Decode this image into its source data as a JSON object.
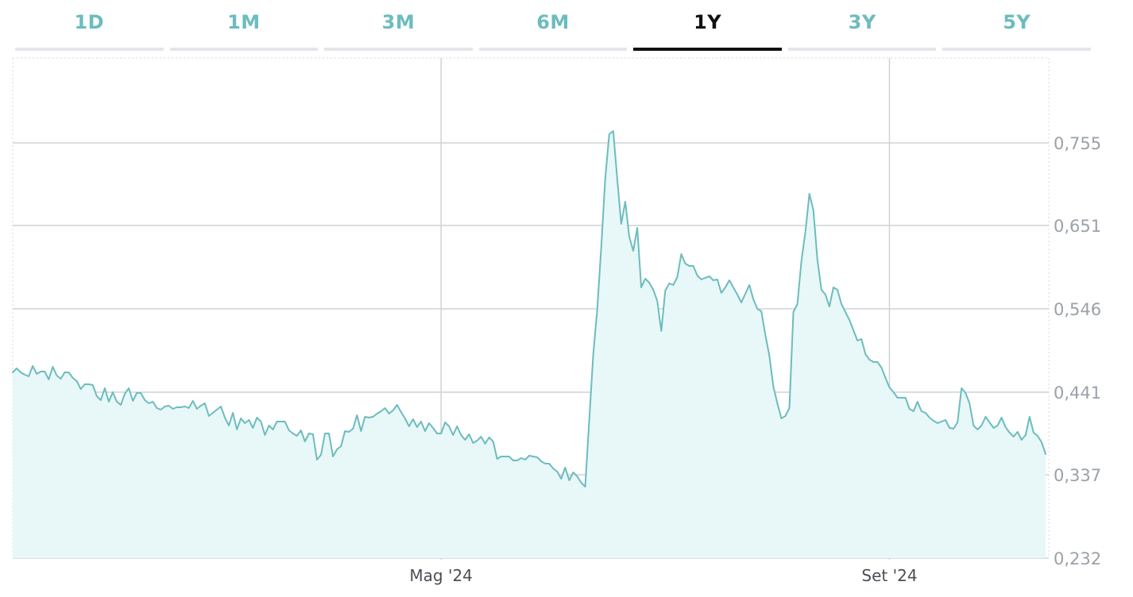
{
  "tabs": [
    {
      "label": "1D",
      "active": false
    },
    {
      "label": "1M",
      "active": false
    },
    {
      "label": "3M",
      "active": false
    },
    {
      "label": "6M",
      "active": false
    },
    {
      "label": "1Y",
      "active": true
    },
    {
      "label": "3Y",
      "active": false
    },
    {
      "label": "5Y",
      "active": false
    }
  ],
  "colors": {
    "line": "#6cbcbe",
    "fill": "#e8f7f8",
    "tab_inactive": "#6cbcbe",
    "tab_active": "#111111"
  },
  "chart_data": {
    "type": "area",
    "title": "",
    "xlabel": "",
    "ylabel": "",
    "ylim": [
      0.232,
      0.86
    ],
    "y_ticks": [
      0.232,
      0.337,
      0.441,
      0.546,
      0.651,
      0.755
    ],
    "y_tick_labels": [
      "0,232",
      "0,337",
      "0,441",
      "0,546",
      "0,651",
      "0,755"
    ],
    "y_axis_position": "right",
    "grid": true,
    "x_ticks": [
      {
        "label": "Mag '24",
        "index": 107
      },
      {
        "label": "Set '24",
        "index": 219
      }
    ],
    "series": [
      {
        "values": [
          0.466,
          0.471,
          0.466,
          0.463,
          0.461,
          0.474,
          0.464,
          0.467,
          0.467,
          0.457,
          0.473,
          0.462,
          0.458,
          0.466,
          0.466,
          0.459,
          0.455,
          0.445,
          0.451,
          0.451,
          0.45,
          0.436,
          0.431,
          0.446,
          0.429,
          0.441,
          0.429,
          0.425,
          0.439,
          0.446,
          0.43,
          0.44,
          0.44,
          0.431,
          0.427,
          0.429,
          0.421,
          0.419,
          0.423,
          0.424,
          0.42,
          0.422,
          0.422,
          0.423,
          0.421,
          0.43,
          0.42,
          0.424,
          0.427,
          0.411,
          0.415,
          0.419,
          0.423,
          0.409,
          0.399,
          0.415,
          0.394,
          0.408,
          0.402,
          0.406,
          0.396,
          0.409,
          0.404,
          0.387,
          0.399,
          0.394,
          0.404,
          0.404,
          0.404,
          0.393,
          0.389,
          0.386,
          0.393,
          0.379,
          0.389,
          0.388,
          0.356,
          0.362,
          0.389,
          0.389,
          0.36,
          0.369,
          0.373,
          0.392,
          0.391,
          0.395,
          0.412,
          0.392,
          0.41,
          0.409,
          0.41,
          0.414,
          0.417,
          0.421,
          0.414,
          0.418,
          0.425,
          0.416,
          0.408,
          0.398,
          0.407,
          0.397,
          0.404,
          0.392,
          0.402,
          0.396,
          0.389,
          0.389,
          0.403,
          0.398,
          0.387,
          0.398,
          0.387,
          0.381,
          0.388,
          0.377,
          0.38,
          0.385,
          0.376,
          0.384,
          0.379,
          0.357,
          0.36,
          0.36,
          0.36,
          0.355,
          0.355,
          0.358,
          0.356,
          0.361,
          0.36,
          0.359,
          0.354,
          0.351,
          0.351,
          0.345,
          0.341,
          0.332,
          0.346,
          0.33,
          0.34,
          0.335,
          0.327,
          0.322,
          0.405,
          0.488,
          0.545,
          0.623,
          0.71,
          0.766,
          0.77,
          0.71,
          0.653,
          0.681,
          0.637,
          0.619,
          0.648,
          0.573,
          0.584,
          0.579,
          0.57,
          0.556,
          0.518,
          0.569,
          0.578,
          0.576,
          0.586,
          0.615,
          0.603,
          0.6,
          0.6,
          0.588,
          0.583,
          0.585,
          0.587,
          0.582,
          0.583,
          0.566,
          0.573,
          0.582,
          0.573,
          0.564,
          0.554,
          0.565,
          0.576,
          0.558,
          0.546,
          0.543,
          0.513,
          0.487,
          0.448,
          0.427,
          0.408,
          0.411,
          0.421,
          0.542,
          0.552,
          0.606,
          0.643,
          0.691,
          0.67,
          0.608,
          0.57,
          0.564,
          0.549,
          0.573,
          0.57,
          0.552,
          0.542,
          0.532,
          0.519,
          0.506,
          0.508,
          0.489,
          0.482,
          0.479,
          0.479,
          0.472,
          0.459,
          0.447,
          0.441,
          0.434,
          0.434,
          0.434,
          0.42,
          0.417,
          0.429,
          0.417,
          0.415,
          0.409,
          0.405,
          0.402,
          0.404,
          0.406,
          0.396,
          0.395,
          0.403,
          0.446,
          0.44,
          0.427,
          0.399,
          0.394,
          0.399,
          0.41,
          0.403,
          0.396,
          0.399,
          0.409,
          0.397,
          0.39,
          0.385,
          0.391,
          0.381,
          0.387,
          0.41,
          0.39,
          0.386,
          0.378,
          0.363
        ]
      }
    ]
  }
}
